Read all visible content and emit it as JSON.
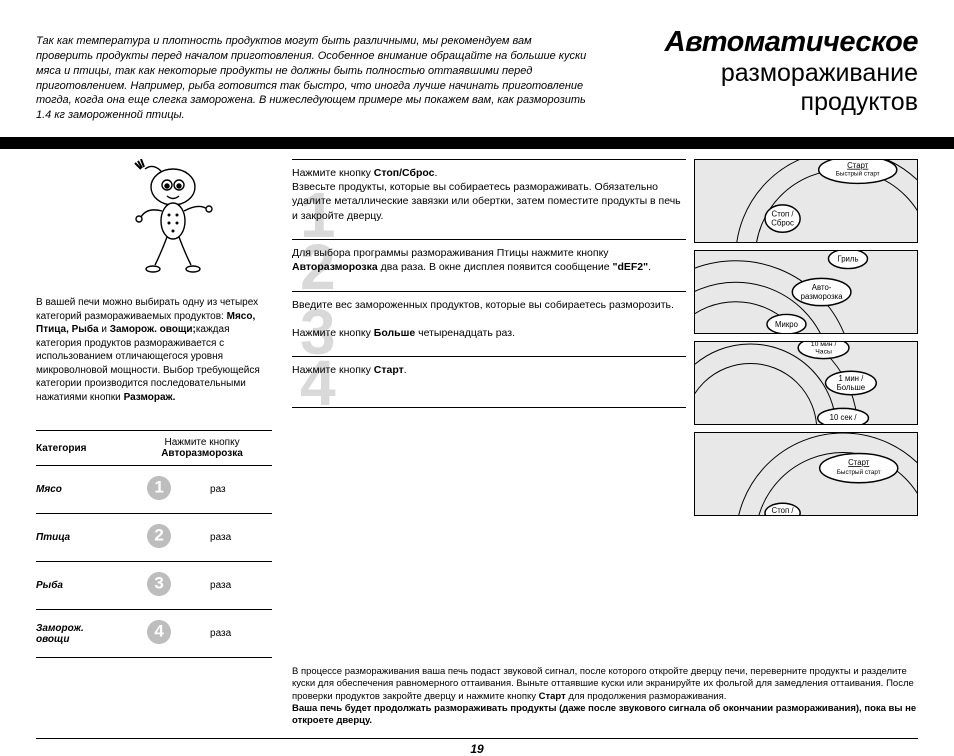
{
  "intro": "Так как температура и плотность продуктов могут быть различными, мы рекомендуем вам проверить продукты перед началом приготовления. Особенное внимание обращайте на большие куски мяса и птицы, так как некоторые продукты не должны быть полностью оттаявшими перед приготовлением. Например, рыба готовится так быстро, что иногда лучше начинать приготовление тогда, когда она еще слегка заморожена. В нижеследующем примере мы покажем вам, как разморозить 1.4 кг замороженной птицы.",
  "title": {
    "line1": "Автоматическое",
    "line2": "размораживание",
    "line3": "продуктов"
  },
  "sidebar": {
    "desc_pre": "В вашей печи можно выбирать одну из четырех категорий размораживаемых продуктов: ",
    "desc_bold1": "Мясо, Птица, Рыба",
    "desc_mid": " и ",
    "desc_bold2": "Заморож. овощи;",
    "desc_post1": "каждая категория продуктов размораживается с использованием отличающегося уровня микроволновой мощности. Выбор требующейся категории производится последовательными нажатиями кнопки ",
    "desc_bold3": "Разморaж."
  },
  "table": {
    "header": {
      "col1": "Категория",
      "col2_line1": "Нажмите кнопку",
      "col2_line2": "Авторазморозка"
    },
    "rows": [
      {
        "cat": "Мясо",
        "num": "1",
        "times": "раз"
      },
      {
        "cat": "Птица",
        "num": "2",
        "times": "раза"
      },
      {
        "cat": "Рыба",
        "num": "3",
        "times": "раза"
      },
      {
        "cat": "Заморож. овощи",
        "num": "4",
        "times": "раза"
      }
    ]
  },
  "steps": [
    {
      "num": "1",
      "html": "Нажмите кнопку <b>Стоп/Сброс</b>.<br>Взвесьте продукты, которые вы собираетесь размораживать. Обязательно удалите металлические завязки или обертки, затем поместите продукты в печь и закройте дверцу."
    },
    {
      "num": "2",
      "html": "Для выбора программы размораживания Птицы нажмите кнопку <b>Авторазморозка</b> два раза. В окне дисплея появится сообщение <b>\"dEF2\"</b>."
    },
    {
      "num": "3",
      "html": "Введите вес замороженных продуктов, которые вы собираетесь разморозить.<br><br>Нажмите кнопку <b>Больше</b> четыренадцать раз."
    },
    {
      "num": "4",
      "html": "Нажмите кнопку <b>Старт</b>."
    }
  ],
  "panels": {
    "p1": {
      "label_start": "Старт",
      "label_quick": "Быстрый старт",
      "label_stop": "Стоп /",
      "label_reset": "Сброс"
    },
    "p2": {
      "label_grill": "Гриль",
      "label_auto1": "Авто-",
      "label_auto2": "разморозка",
      "label_micro": "Микро"
    },
    "p3": {
      "label_10min": "10 мин /",
      "label_clock": "Часы",
      "label_1min": "1 мин /",
      "label_more": "Больше",
      "label_10sec": "10 сек /"
    },
    "p4": {
      "label_start": "Старт",
      "label_quick": "Быстрый старт",
      "label_stop": "Стоп /"
    }
  },
  "footer": {
    "para1": "В процессе размораживания ваша печь подаст звуковой сигнал, после которого откройте дверцу печи, переверните продукты и разделите куски для обеспечения равномерного оттаивания. Выньте оттаявшие куски или экранируйте их фольгой для замедления оттаивания. После проверки продуктов закройте дверцу и нажмите кнопку ",
    "para1_bold": "Старт",
    "para1_end": " для продолжения размораживания.",
    "para2": "Ваша печь будет продолжать размораживать продукты (даже после звукового сигнала об окончании размораживания), пока вы не откроете дверцу."
  },
  "pagenum": "19",
  "colors": {
    "bignum": "#d9d9d9",
    "circle": "#bdbdbd",
    "panel_bg": "#e8e8e8"
  }
}
